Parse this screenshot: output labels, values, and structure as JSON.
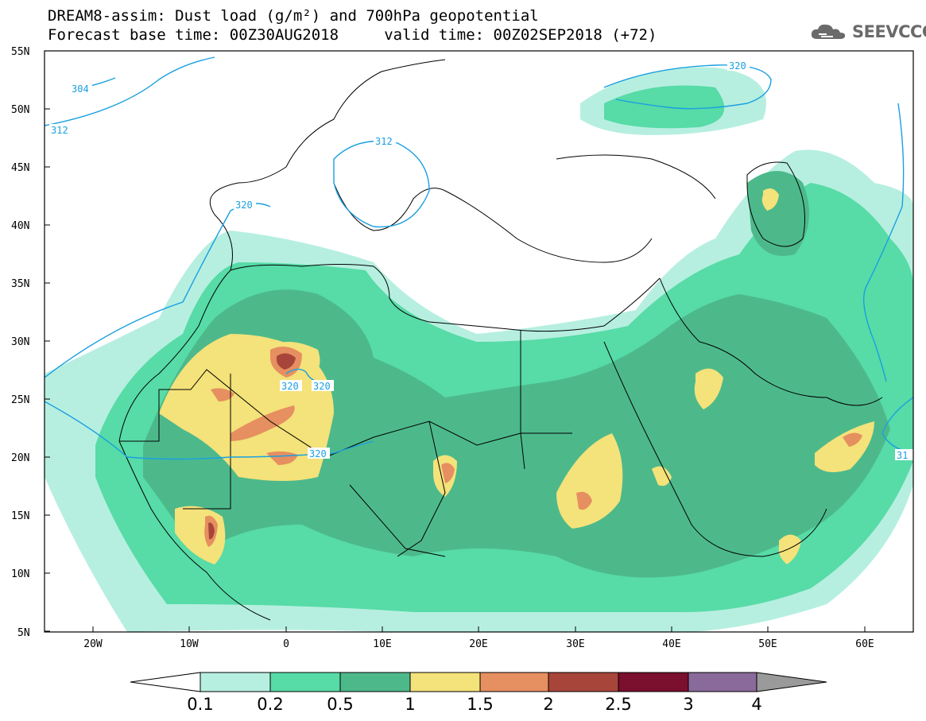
{
  "header": {
    "line1": "DREAM8-assim: Dust load (g/m²) and 700hPa geopotential",
    "line2": "Forecast base time: 00Z30AUG2018     valid time: 00Z02SEP2018 (+72)"
  },
  "logo": {
    "icon": "cloud-icon",
    "text": "SEEVCCC"
  },
  "map": {
    "lon_range": [
      -25,
      65
    ],
    "lat_range": [
      5,
      55
    ],
    "lat_labels": [
      "55N",
      "50N",
      "45N",
      "40N",
      "35N",
      "30N",
      "25N",
      "20N",
      "15N",
      "10N",
      "5N"
    ],
    "lon_labels": [
      "20W",
      "10W",
      "0",
      "10E",
      "20E",
      "30E",
      "40E",
      "50E",
      "60E"
    ],
    "geopotential_contours": [
      "304",
      "312",
      "312",
      "320",
      "320",
      "320",
      "320",
      "320",
      "31"
    ]
  },
  "colorbar": {
    "labels": [
      "0.1",
      "0.2",
      "0.5",
      "1",
      "1.5",
      "2",
      "2.5",
      "3",
      "4"
    ],
    "colors": [
      "#ffffff",
      "#b6efe0",
      "#57dba7",
      "#4db98b",
      "#f4e27a",
      "#e68f60",
      "#a8453a",
      "#7a0f2e",
      "#8a6a9a",
      "#9a9a9a"
    ]
  }
}
